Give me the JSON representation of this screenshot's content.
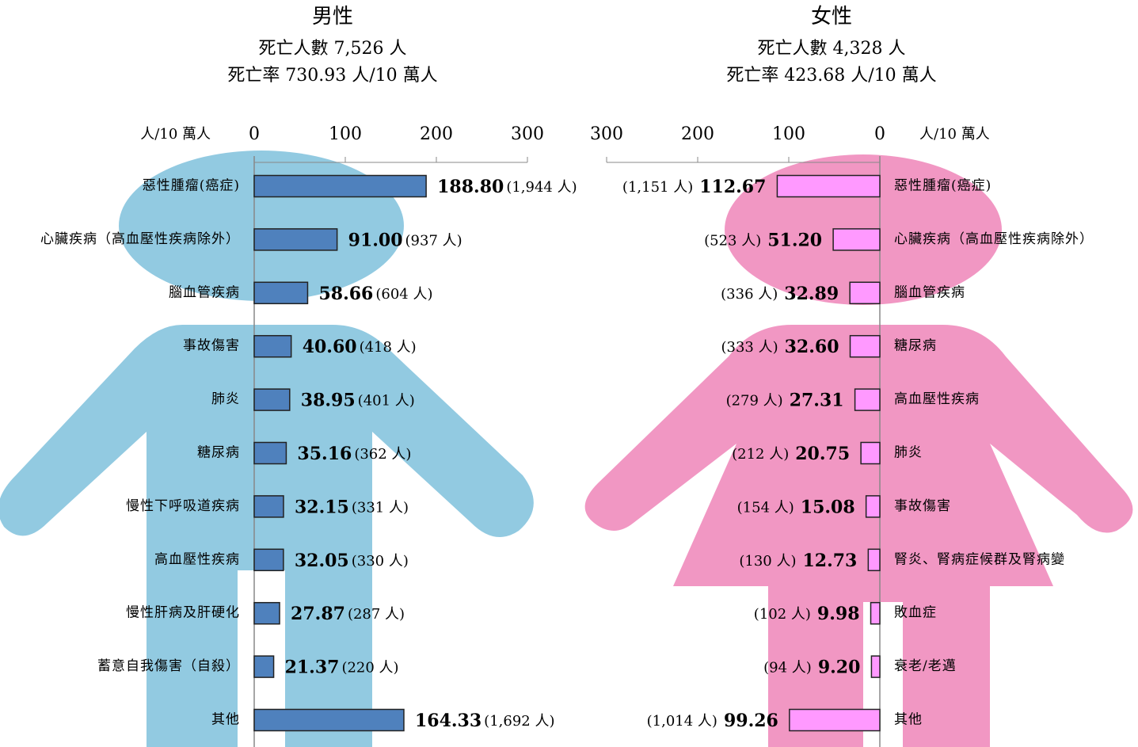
{
  "chart_data": [
    {
      "type": "bar",
      "title": "男性",
      "subtitle": [
        "死亡人數 7,526 人",
        "死亡率 730.93 人/10 萬人"
      ],
      "x_label": "人/10 萬人",
      "xlim": [
        0,
        300
      ],
      "xticks": [
        0,
        100,
        200,
        300
      ],
      "x_reversed": false,
      "color": "#4f81bd",
      "categories": [
        "惡性腫瘤(癌症)",
        "心臟疾病（高血壓性疾病除外）",
        "腦血管疾病",
        "事故傷害",
        "肺炎",
        "糖尿病",
        "慢性下呼吸道疾病",
        "高血壓性疾病",
        "慢性肝病及肝硬化",
        "蓄意自我傷害（自殺）",
        "其他"
      ],
      "values": [
        188.8,
        91,
        58.66,
        40.6,
        38.95,
        35.16,
        32.15,
        32.05,
        27.87,
        21.37,
        164.33
      ],
      "value_labels": [
        "188.80",
        "91.00",
        "58.66",
        "40.60",
        "38.95",
        "35.16",
        "32.15",
        "32.05",
        "27.87",
        "21.37",
        "164.33"
      ],
      "count_labels": [
        "(1,944 人)",
        "(937 人)",
        "(604 人)",
        "(418 人)",
        "(401 人)",
        "(362 人)",
        "(331 人)",
        "(330 人)",
        "(287 人)",
        "(220 人)",
        "(1,692 人)"
      ]
    },
    {
      "type": "bar",
      "title": "女性",
      "subtitle": [
        "死亡人數 4,328 人",
        "死亡率 423.68 人/10 萬人"
      ],
      "x_label": "人/10 萬人",
      "xlim": [
        0,
        300
      ],
      "xticks": [
        0,
        100,
        200,
        300
      ],
      "x_reversed": true,
      "color": "#ff99ff",
      "categories": [
        "惡性腫瘤(癌症)",
        "心臟疾病（高血壓性疾病除外）",
        "腦血管疾病",
        "糖尿病",
        "高血壓性疾病",
        "肺炎",
        "事故傷害",
        "腎炎、腎病症候群及腎病變",
        "敗血症",
        "衰老/老邁",
        "其他"
      ],
      "values": [
        112.67,
        51.2,
        32.89,
        32.6,
        27.31,
        20.75,
        15.08,
        12.73,
        9.98,
        9.2,
        99.26
      ],
      "value_labels": [
        "112.67",
        "51.20",
        "32.89",
        "32.60",
        "27.31",
        "20.75",
        "15.08",
        "12.73",
        "9.98",
        "9.20",
        "99.26"
      ],
      "count_labels": [
        "(1,151 人)",
        "(523 人)",
        "(336 人)",
        "(333 人)",
        "(279 人)",
        "(212 人)",
        "(154 人)",
        "(130 人)",
        "(102 人)",
        "(94 人)",
        "(1,014 人)"
      ]
    }
  ]
}
